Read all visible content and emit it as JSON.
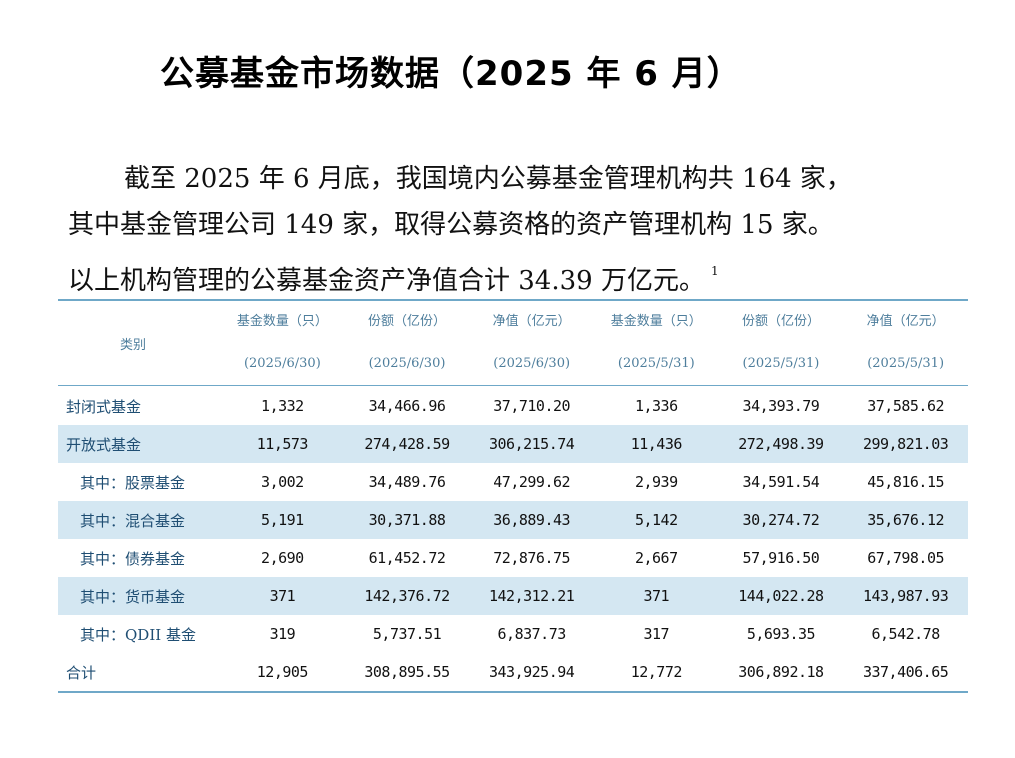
{
  "title": "公募基金市场数据（2025 年 6 月）",
  "paragraph": {
    "line1": "截至 2025 年 6 月底，我国境内公募基金管理机构共 164 家，",
    "line2": "其中基金管理公司 149 家，取得公募资格的资产管理机构 15 家。",
    "line3": "以上机构管理的公募基金资产净值合计 34.39 万亿元。",
    "footnote_mark": "1"
  },
  "table": {
    "category_header": "类别",
    "columns": [
      {
        "name": "基金数量（只）",
        "date": "(2025/6/30)"
      },
      {
        "name": "份额（亿份）",
        "date": "(2025/6/30)"
      },
      {
        "name": "净值（亿元）",
        "date": "(2025/6/30)"
      },
      {
        "name": "基金数量（只）",
        "date": "(2025/5/31)"
      },
      {
        "name": "份额（亿份）",
        "date": "(2025/5/31)"
      },
      {
        "name": "净值（亿元）",
        "date": "(2025/5/31)"
      }
    ],
    "rows": [
      {
        "label": "封闭式基金",
        "values": [
          "1,332",
          "34,466.96",
          "37,710.20",
          "1,336",
          "34,393.79",
          "37,585.62"
        ]
      },
      {
        "label": "开放式基金",
        "values": [
          "11,573",
          "274,428.59",
          "306,215.74",
          "11,436",
          "272,498.39",
          "299,821.03"
        ]
      },
      {
        "label": "其中：股票基金",
        "values": [
          "3,002",
          "34,489.76",
          "47,299.62",
          "2,939",
          "34,591.54",
          "45,816.15"
        ]
      },
      {
        "label": "其中：混合基金",
        "values": [
          "5,191",
          "30,371.88",
          "36,889.43",
          "5,142",
          "30,274.72",
          "35,676.12"
        ]
      },
      {
        "label": "其中：债券基金",
        "values": [
          "2,690",
          "61,452.72",
          "72,876.75",
          "2,667",
          "57,916.50",
          "67,798.05"
        ]
      },
      {
        "label": "其中：货币基金",
        "values": [
          "371",
          "142,376.72",
          "142,312.21",
          "371",
          "144,022.28",
          "143,987.93"
        ]
      },
      {
        "label": "其中：QDII 基金",
        "values": [
          "319",
          "5,737.51",
          "6,837.73",
          "317",
          "5,693.35",
          "6,542.78"
        ]
      },
      {
        "label": "合计",
        "values": [
          "12,905",
          "308,895.55",
          "343,925.94",
          "12,772",
          "306,892.18",
          "337,406.65"
        ]
      }
    ]
  },
  "colors": {
    "accent": "#6fa8c8",
    "row_shade": "#d4e7f2",
    "label_text": "#1f4e73"
  }
}
